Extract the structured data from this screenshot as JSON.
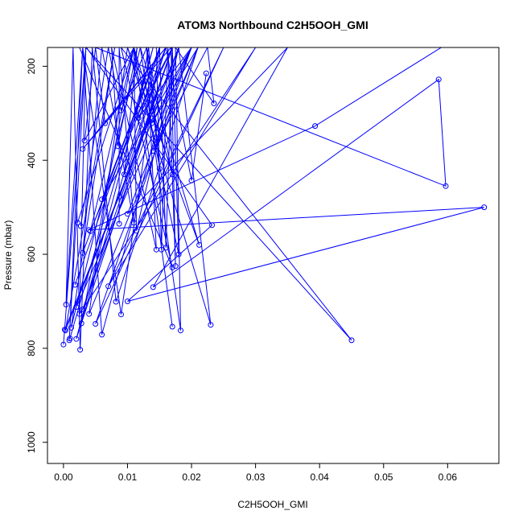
{
  "chart_data": {
    "type": "line",
    "title": "ATOM3 Northbound C2H5OOH_GMI",
    "xlabel": "C2H5OOH_GMI",
    "ylabel": "Pressure (mbar)",
    "xlim": [
      -0.0025,
      0.068
    ],
    "ylim": [
      1045,
      160
    ],
    "y_reversed": true,
    "x_ticks": [
      0.0,
      0.01,
      0.02,
      0.03,
      0.04,
      0.05,
      0.06
    ],
    "x_tick_labels": [
      "0.00",
      "0.01",
      "0.02",
      "0.03",
      "0.04",
      "0.05",
      "0.06"
    ],
    "y_ticks": [
      200,
      400,
      600,
      800,
      1000
    ],
    "y_tick_labels": [
      "200",
      "400",
      "600",
      "800",
      "1000"
    ],
    "grid": false,
    "marker": "open-circle",
    "color": "#0000ff",
    "series": [
      {
        "x": [
          0.0,
          0.0035,
          0.0009,
          0.003,
          0.0004,
          0.0015,
          0.0026,
          0.0045,
          0.0082,
          0.021,
          0.004,
          0.01,
          0.023,
          0.018,
          0.006,
          0.003,
          0.009,
          0.015,
          0.0028,
          0.011,
          0.017
        ],
        "y": [
          792,
          160,
          783,
          160,
          707,
          160,
          803,
          160,
          701,
          160,
          727,
          160,
          750,
          160,
          771,
          160,
          728,
          160,
          747,
          160,
          754
        ]
      },
      {
        "x": [
          0.0002,
          0.018,
          0.0003,
          0.008,
          0.0012,
          0.012,
          0.002,
          0.02,
          0.005,
          0.025,
          0.007,
          0.03,
          0.0025,
          0.0035,
          0.045,
          0.009,
          0.017,
          0.0025
        ],
        "y": [
          760,
          160,
          762,
          160,
          756,
          160,
          712,
          160,
          748,
          160,
          668,
          160,
          727,
          160,
          783,
          160,
          628,
          160
        ]
      },
      {
        "x": [
          0.0018,
          0.015,
          0.006,
          0.02,
          0.01,
          0.035,
          0.014,
          0.0586,
          0.0597,
          0.005,
          0.059,
          0.0393,
          0.004,
          0.0657,
          0.01,
          0.0232,
          0.0036
        ],
        "y": [
          665,
          160,
          483,
          160,
          514,
          160,
          670,
          228,
          455,
          160,
          160,
          327,
          548,
          500,
          700,
          538,
          160
        ]
      },
      {
        "x": [
          0.0087,
          0.0087,
          0.011,
          0.006,
          0.003,
          0.015,
          0.016,
          0.017,
          0.018,
          0.011,
          0.0033,
          0.005,
          0.0065,
          0.016,
          0.02,
          0.0223
        ],
        "y": [
          535,
          160,
          533,
          160,
          597,
          160,
          586,
          160,
          600,
          160,
          358,
          160,
          321,
          160,
          443,
          215
        ]
      },
      {
        "x": [
          0.0022,
          0.011,
          0.0042,
          0.016,
          0.0088,
          0.017,
          0.0117,
          0.02,
          0.0138,
          0.021,
          0.014,
          0.0225,
          0.0235,
          0.0175,
          0.0183,
          0.012,
          0.0212,
          0.01
        ],
        "y": [
          533,
          160,
          551,
          160,
          477,
          160,
          310,
          160,
          321,
          160,
          380,
          160,
          279,
          160,
          762,
          160,
          580,
          160
        ]
      },
      {
        "x": [
          0.0027,
          0.007,
          0.009,
          0.013,
          0.0145,
          0.0075,
          0.0085,
          0.0115,
          0.0095,
          0.016,
          0.003,
          0.0168,
          0.0175,
          0.0163,
          0.0153,
          0.0145
        ],
        "y": [
          540,
          160,
          294,
          160,
          590,
          160,
          370,
          160,
          430,
          160,
          376,
          160,
          625,
          160,
          590,
          160
        ]
      },
      {
        "x": [
          0.001,
          0.014,
          0.002,
          0.017,
          0.003,
          0.018,
          0.0114,
          0.011,
          0.017,
          0.013,
          0.015,
          0.0133,
          0.0114,
          0.017
        ],
        "y": [
          779,
          160,
          780,
          160,
          717,
          160,
          550,
          160,
          430,
          160,
          418,
          160,
          305,
          160
        ]
      }
    ]
  }
}
